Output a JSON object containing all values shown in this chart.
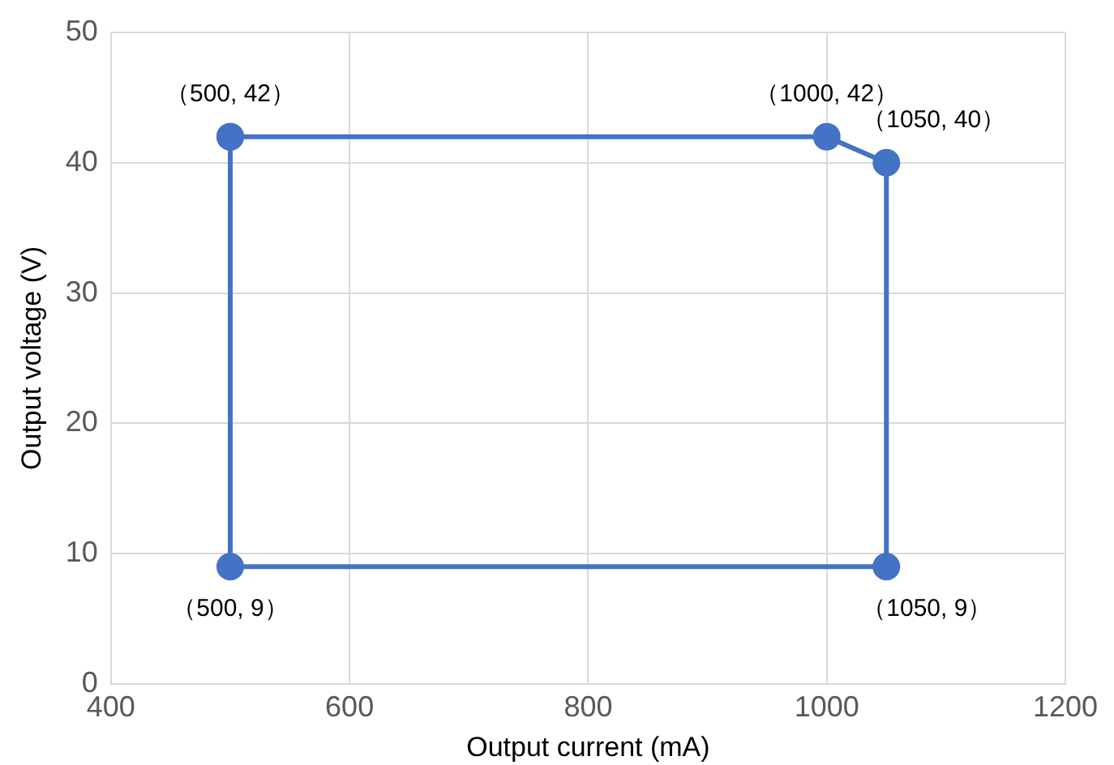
{
  "chart_data": {
    "type": "scatter",
    "xlabel": "Output current (mA)",
    "ylabel": "Output voltage (V)",
    "series": [
      {
        "color": "#4472c4",
        "x": [
          500,
          1000,
          1050,
          1050,
          500,
          500
        ],
        "values": [
          42,
          42,
          40,
          9,
          9,
          42
        ],
        "value_labels": [
          "（500, 42）",
          "（1000, 42）",
          "（1050, 40）",
          "（1050, 9）",
          "（500, 9）",
          null
        ]
      }
    ],
    "xlim": [
      400,
      1200
    ],
    "xticks": [
      400,
      600,
      800,
      1000,
      1200
    ],
    "ylim": [
      0,
      50
    ],
    "yticks": [
      0,
      10,
      20,
      30,
      40,
      50
    ],
    "grid": true,
    "legend": false,
    "marker": "circle",
    "line_style": "solid"
  }
}
